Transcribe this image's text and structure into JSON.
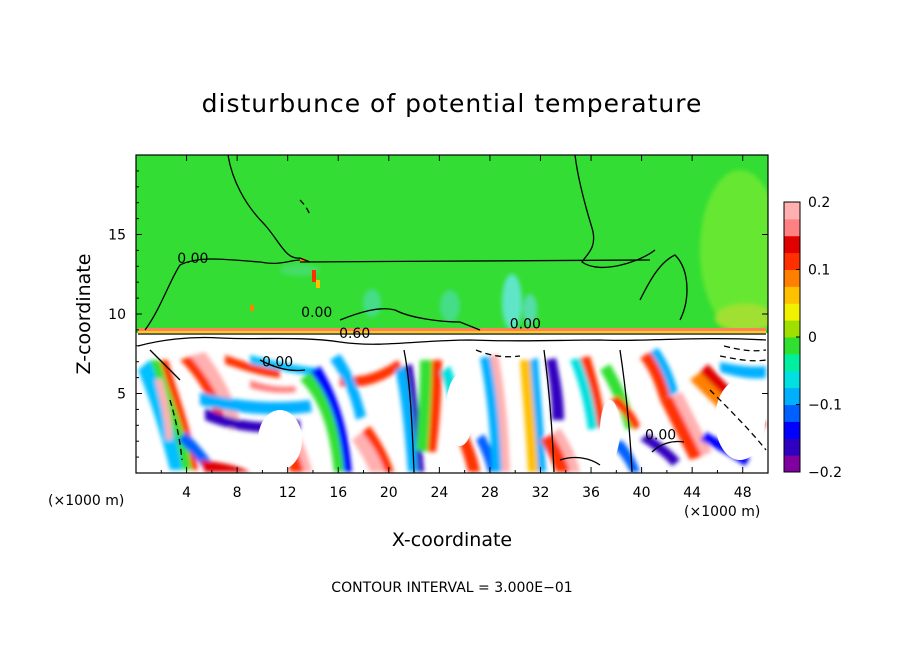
{
  "chart_data": {
    "type": "heatmap",
    "title": "disturbunce of potential temperature",
    "xlabel": "X-coordinate",
    "ylabel": "Z-coordinate",
    "x_unit_left": "(×1000 m)",
    "x_unit_right": "(×1000 m)",
    "xlim": [
      0,
      50
    ],
    "ylim": [
      0,
      20
    ],
    "x_ticks": [
      4,
      8,
      12,
      16,
      20,
      24,
      28,
      32,
      36,
      40,
      44,
      48
    ],
    "y_ticks": [
      5,
      10,
      15
    ],
    "colorbar": {
      "range": [
        -0.2,
        0.2
      ],
      "tick_values": [
        0.2,
        0.1,
        0,
        -0.1,
        -0.2
      ],
      "tick_labels": [
        "0.2",
        "0.1",
        "0",
        "−0.1",
        "−0.2"
      ],
      "colors": [
        "#8000a0",
        "#3000c0",
        "#0000ff",
        "#0060ff",
        "#00b0ff",
        "#00e0e0",
        "#00f0a0",
        "#30e030",
        "#a0e000",
        "#f0f000",
        "#ffc000",
        "#ff8000",
        "#ff3000",
        "#e00000",
        "#ff8080",
        "#ffb0b0"
      ]
    },
    "contour_labels": [
      {
        "text": "0.00",
        "x": 4.5,
        "z": 13.2
      },
      {
        "text": "0.00",
        "x": 14.3,
        "z": 9.8
      },
      {
        "text": "0.60",
        "x": 17.3,
        "z": 8.5
      },
      {
        "text": "0.00",
        "x": 11.2,
        "z": 6.7
      },
      {
        "text": "0.00",
        "x": 30.8,
        "z": 9.1
      },
      {
        "text": "0.00",
        "x": 41.5,
        "z": 2.1
      }
    ],
    "contour_interval_note": "CONTOUR INTERVAL = 3.000E−01"
  }
}
